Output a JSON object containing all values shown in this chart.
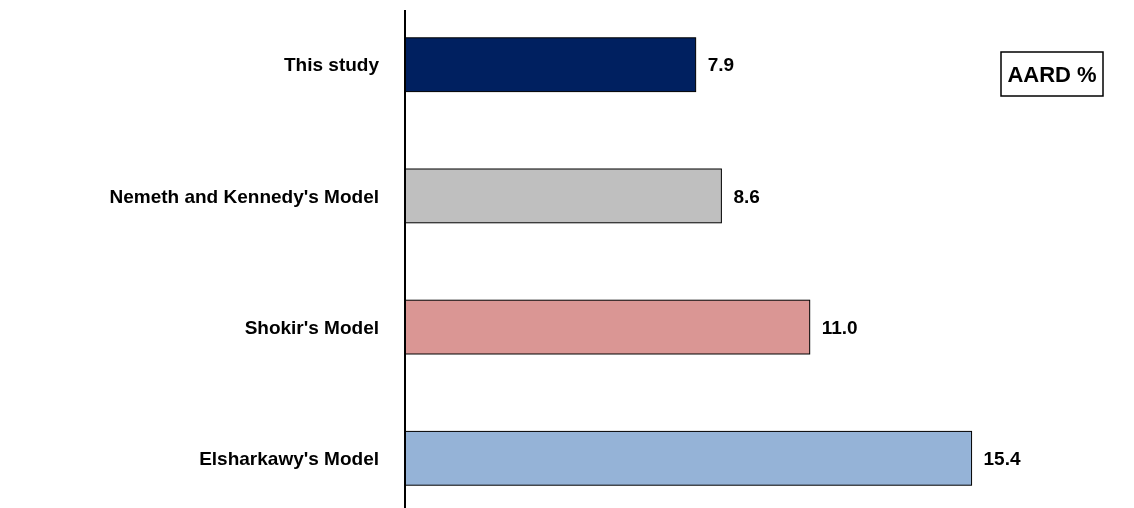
{
  "chart_data": {
    "type": "bar",
    "orientation": "horizontal",
    "title": "AARD %",
    "categories": [
      "This study",
      "Nemeth and Kennedy's Model",
      "Shokir's Model",
      "Elsharkawy's Model"
    ],
    "values": [
      7.9,
      8.6,
      11.0,
      15.4
    ],
    "colors": [
      "#002060",
      "#bfbfbf",
      "#da9694",
      "#95b3d7"
    ],
    "value_labels": [
      "7.9",
      "8.6",
      "11.0",
      "15.4"
    ],
    "xlim": [
      0,
      19
    ],
    "tick_labels": "y"
  }
}
